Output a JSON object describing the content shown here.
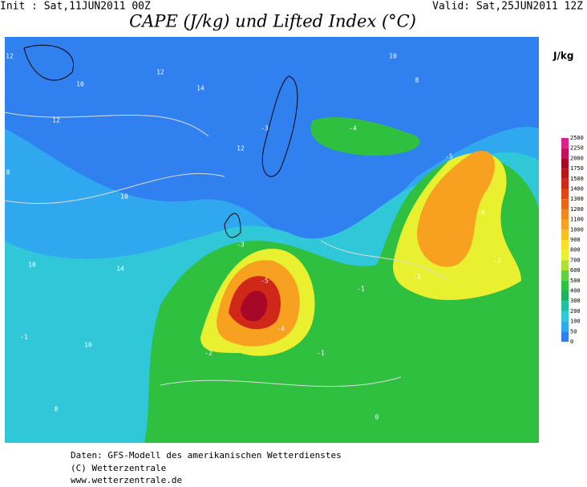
{
  "header": {
    "init": "Init : Sat,11JUN2011 00Z",
    "valid": "Valid: Sat,25JUN2011 12Z",
    "title": "CAPE (J/kg) und Lifted Index (°C)"
  },
  "legend": {
    "unit": "J/kg",
    "levels": [
      2500,
      2250,
      2000,
      1750,
      1500,
      1400,
      1300,
      1200,
      1100,
      1000,
      900,
      800,
      700,
      600,
      500,
      400,
      300,
      200,
      100,
      50,
      0
    ],
    "colors": [
      "#e0208a",
      "#c8105a",
      "#a80828",
      "#b81818",
      "#d02818",
      "#e04818",
      "#e86818",
      "#f08820",
      "#f8a020",
      "#f8c020",
      "#f8e028",
      "#e8f030",
      "#b0e030",
      "#60d040",
      "#30c040",
      "#20b060",
      "#20c0a0",
      "#30c8d8",
      "#30a8f0",
      "#3080f0"
    ]
  },
  "map": {
    "labels": [
      "12",
      "10",
      "14",
      "12",
      "10",
      "8",
      "10",
      "10",
      "8",
      "12",
      "14",
      "-1",
      "-3",
      "-4",
      "-5",
      "-6",
      "-2",
      "-3",
      "-5",
      "-4",
      "-2",
      "-1",
      "-3",
      "-1",
      "0",
      "8",
      "10",
      "12"
    ]
  },
  "footer": {
    "lines": [
      "Daten: GFS-Modell des amerikanischen Wetterdienstes",
      "(C) Wetterzentrale",
      "www.wetterzentrale.de"
    ]
  }
}
